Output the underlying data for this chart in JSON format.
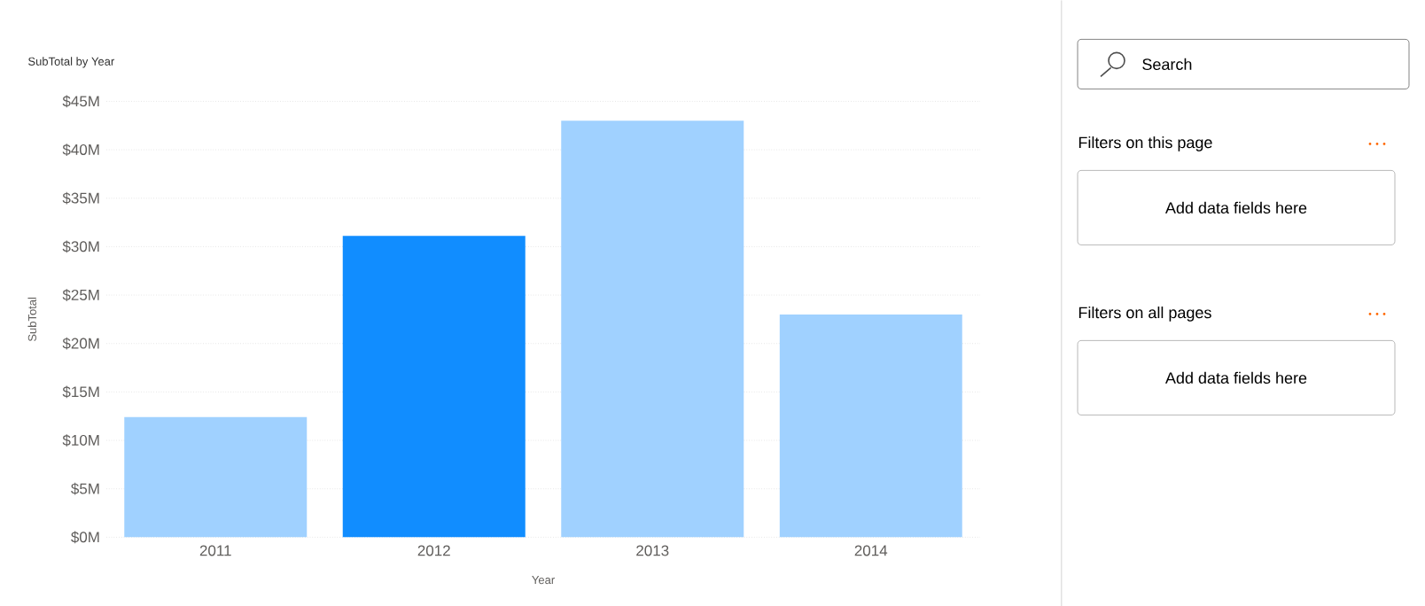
{
  "chart_data": [
    {
      "type": "bar",
      "title": "SubTotal by Year",
      "xlabel": "Year",
      "ylabel": "SubTotal",
      "categories": [
        "2011",
        "2012",
        "2013",
        "2014"
      ],
      "values": [
        12.4,
        31.1,
        43.0,
        23.0
      ],
      "colors": [
        "#a0d1ff",
        "#118dff",
        "#a0d1ff",
        "#a0d1ff"
      ],
      "ylim": [
        0,
        45
      ],
      "yticks": [
        {
          "value": 0,
          "label": "$0M"
        },
        {
          "value": 5,
          "label": "$5M"
        },
        {
          "value": 10,
          "label": "$10M"
        },
        {
          "value": 15,
          "label": "$15M"
        },
        {
          "value": 20,
          "label": "$20M"
        },
        {
          "value": 25,
          "label": "$25M"
        },
        {
          "value": 30,
          "label": "$30M"
        },
        {
          "value": 35,
          "label": "$35M"
        },
        {
          "value": 40,
          "label": "$40M"
        },
        {
          "value": 45,
          "label": "$45M"
        }
      ],
      "grid": "y"
    },
    {
      "type": "other",
      "annotations": [
        "Search",
        "Filters on this page",
        "Add data fields here",
        "Filters on all pages",
        "Add data fields here"
      ]
    }
  ]
}
